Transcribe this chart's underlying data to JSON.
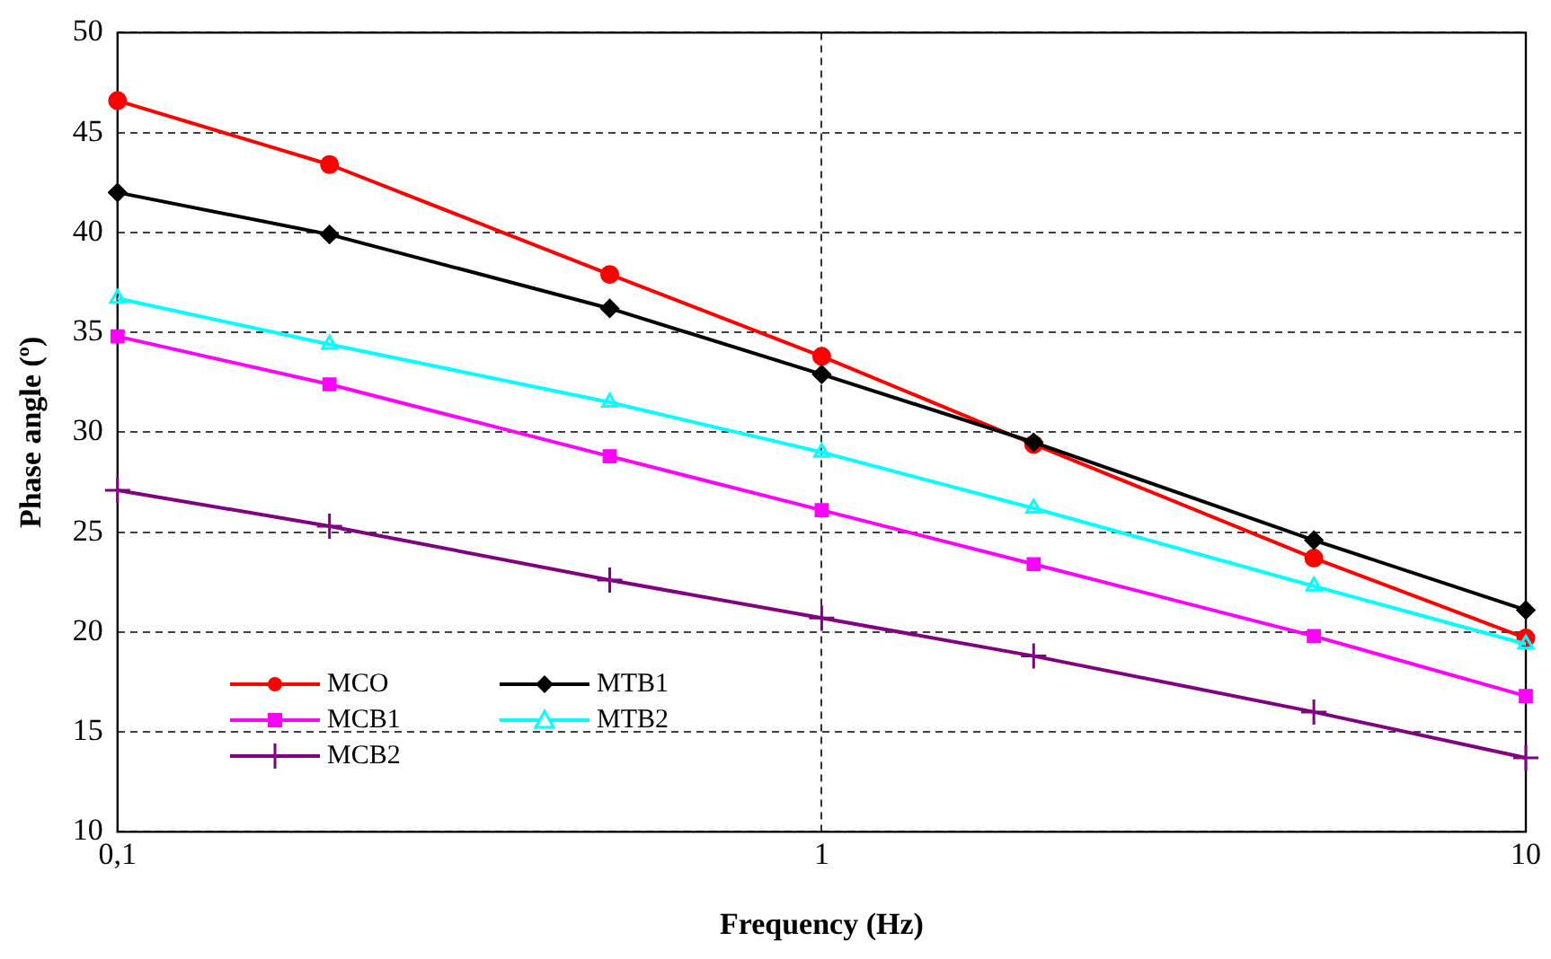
{
  "chart_data": {
    "type": "line",
    "xlabel": "Frequency (Hz)",
    "ylabel": "Phase angle (º)",
    "log": "x",
    "xlim": [
      0.1,
      10
    ],
    "xticks": [
      {
        "value": 0.1,
        "label": "0,1"
      },
      1,
      10
    ],
    "ylim": [
      10,
      50
    ],
    "yticks": [
      10,
      15,
      20,
      25,
      30,
      35,
      40,
      45,
      50
    ],
    "x": [
      0.1,
      0.2,
      0.5,
      1,
      2,
      5,
      10
    ],
    "grid": true,
    "legend": "bottom left",
    "line_style": "solid",
    "series": [
      {
        "name": "MCO",
        "color": "#ff0000",
        "marker": "circle",
        "values": [
          46.6,
          43.4,
          37.9,
          33.8,
          29.4,
          23.7,
          19.7
        ]
      },
      {
        "name": "MTB1",
        "color": "#000000",
        "marker": "diamond",
        "values": [
          42.0,
          39.9,
          36.2,
          32.9,
          29.5,
          24.6,
          21.1
        ]
      },
      {
        "name": "MCB1",
        "color": "#ff00ff",
        "marker": "square",
        "values": [
          34.8,
          32.4,
          28.8,
          26.1,
          23.4,
          19.8,
          16.8
        ]
      },
      {
        "name": "MTB2",
        "color": "#00ffff",
        "marker": "triangle",
        "values": [
          36.7,
          34.4,
          31.5,
          29.0,
          26.2,
          22.3,
          19.4
        ]
      },
      {
        "name": "MCB2",
        "color": "#800080",
        "marker": "cross",
        "values": [
          27.1,
          25.3,
          22.6,
          20.7,
          18.8,
          16.0,
          13.7
        ]
      }
    ]
  }
}
